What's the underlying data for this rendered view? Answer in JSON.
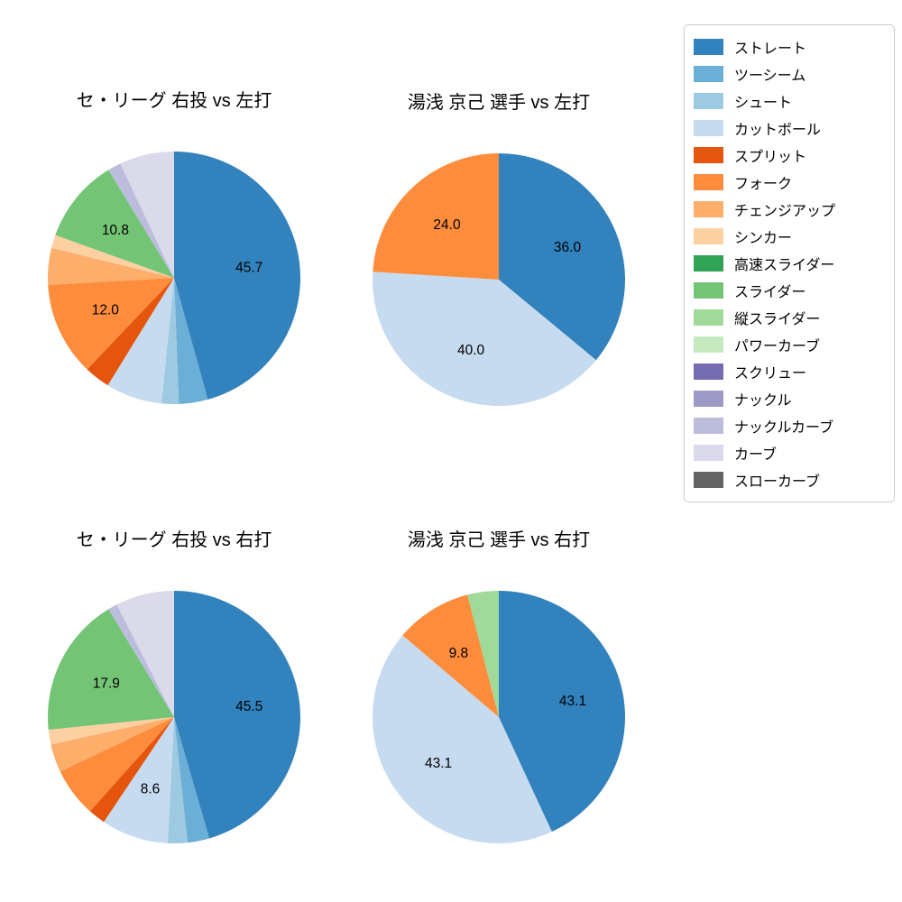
{
  "colors": {
    "ストレート": "#3182bd",
    "ツーシーム": "#6baed6",
    "シュート": "#9ecae1",
    "カットボール": "#c6dbef",
    "スプリット": "#e6550d",
    "フォーク": "#fd8d3c",
    "チェンジアップ": "#fdae6b",
    "シンカー": "#fdd0a2",
    "高速スライダー": "#31a354",
    "スライダー": "#74c476",
    "縦スライダー": "#a1d99b",
    "パワーカーブ": "#c7e9c0",
    "スクリュー": "#756bb1",
    "ナックル": "#9e9ac8",
    "ナックルカーブ": "#bcbddc",
    "カーブ": "#dadaeb",
    "スローカーブ": "#636363"
  },
  "legend": {
    "items": [
      "ストレート",
      "ツーシーム",
      "シュート",
      "カットボール",
      "スプリット",
      "フォーク",
      "チェンジアップ",
      "シンカー",
      "高速スライダー",
      "スライダー",
      "縦スライダー",
      "パワーカーブ",
      "スクリュー",
      "ナックル",
      "ナックルカーブ",
      "カーブ",
      "スローカーブ"
    ]
  },
  "chart_data": [
    {
      "type": "pie",
      "title": "セ・リーグ 右投 vs 左打",
      "start_angle": "12-o-clock",
      "direction": "clockwise",
      "slices": [
        {
          "name": "ストレート",
          "value": 45.7,
          "label": "45.7"
        },
        {
          "name": "ツーシーム",
          "value": 3.7,
          "label": null
        },
        {
          "name": "シュート",
          "value": 2.2,
          "label": null
        },
        {
          "name": "カットボール",
          "value": 7.2,
          "label": null
        },
        {
          "name": "スプリット",
          "value": 3.3,
          "label": null
        },
        {
          "name": "フォーク",
          "value": 12.0,
          "label": "12.0"
        },
        {
          "name": "チェンジアップ",
          "value": 4.7,
          "label": null
        },
        {
          "name": "シンカー",
          "value": 1.7,
          "label": null
        },
        {
          "name": "スライダー",
          "value": 10.8,
          "label": "10.8"
        },
        {
          "name": "ナックルカーブ",
          "value": 1.7,
          "label": null
        },
        {
          "name": "カーブ",
          "value": 7.0,
          "label": null
        }
      ]
    },
    {
      "type": "pie",
      "title": "湯浅 京己 選手 vs 左打",
      "start_angle": "12-o-clock",
      "direction": "clockwise",
      "slices": [
        {
          "name": "ストレート",
          "value": 36.0,
          "label": "36.0"
        },
        {
          "name": "カットボール",
          "value": 40.0,
          "label": "40.0"
        },
        {
          "name": "フォーク",
          "value": 24.0,
          "label": "24.0"
        }
      ]
    },
    {
      "type": "pie",
      "title": "セ・リーグ 右投 vs 右打",
      "start_angle": "12-o-clock",
      "direction": "clockwise",
      "slices": [
        {
          "name": "ストレート",
          "value": 45.5,
          "label": "45.5"
        },
        {
          "name": "ツーシーム",
          "value": 2.8,
          "label": null
        },
        {
          "name": "シュート",
          "value": 2.5,
          "label": null
        },
        {
          "name": "カットボール",
          "value": 8.6,
          "label": "8.6"
        },
        {
          "name": "スプリット",
          "value": 2.2,
          "label": null
        },
        {
          "name": "フォーク",
          "value": 6.3,
          "label": null
        },
        {
          "name": "チェンジアップ",
          "value": 3.6,
          "label": null
        },
        {
          "name": "シンカー",
          "value": 1.9,
          "label": null
        },
        {
          "name": "スライダー",
          "value": 17.9,
          "label": "17.9"
        },
        {
          "name": "ナックルカーブ",
          "value": 1.2,
          "label": null
        },
        {
          "name": "カーブ",
          "value": 7.5,
          "label": null
        }
      ]
    },
    {
      "type": "pie",
      "title": "湯浅 京己 選手 vs 右打",
      "start_angle": "12-o-clock",
      "direction": "clockwise",
      "slices": [
        {
          "name": "ストレート",
          "value": 43.1,
          "label": "43.1"
        },
        {
          "name": "カットボール",
          "value": 43.1,
          "label": "43.1"
        },
        {
          "name": "フォーク",
          "value": 9.8,
          "label": "9.8"
        },
        {
          "name": "縦スライダー",
          "value": 4.0,
          "label": null
        }
      ]
    }
  ]
}
